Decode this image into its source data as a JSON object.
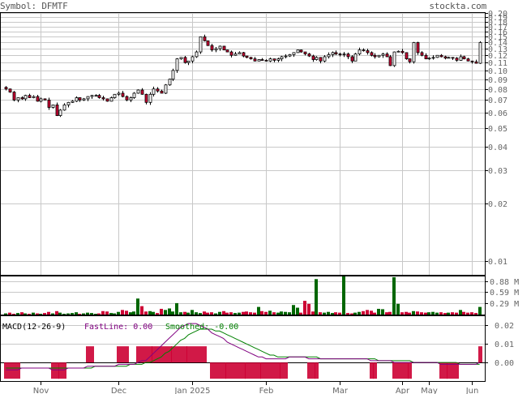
{
  "header": {
    "symbol_label": "Symbol: DFMTF",
    "site": "stockta.com"
  },
  "macd": {
    "title": "MACD(12-26-9)",
    "fast_label": "FastLine: 0.00",
    "smooth_label": "Smoothed: -0.00",
    "fast_color": "#800080",
    "smooth_color": "#008000"
  },
  "colors": {
    "up": "#ffffff",
    "down": "#cc0033",
    "vol_up": "#006600",
    "vol_down": "#cc0033",
    "grid": "#c8c8c8"
  },
  "chart_data": [
    {
      "type": "candlestick",
      "title": "Price (log scale)",
      "y_scale": "log",
      "ylim": [
        0.0085,
        0.2
      ],
      "y_ticks": [
        "0.20",
        "0.19",
        "0.18",
        "0.17",
        "0.16",
        "0.15",
        "0.14",
        "0.13",
        "0.12",
        "0.11",
        "0.10",
        "0.09",
        "0.08",
        "0.07",
        "0.06",
        "0.05",
        "0.04",
        "0.03",
        "0.02",
        "0.01"
      ],
      "x_ticks": [
        "Nov",
        "Dec",
        "Jan 2025",
        "Feb",
        "Mar",
        "Apr",
        "May",
        "Jun"
      ],
      "closes": [
        0.08,
        0.077,
        0.07,
        0.072,
        0.071,
        0.074,
        0.072,
        0.073,
        0.069,
        0.071,
        0.07,
        0.064,
        0.066,
        0.058,
        0.062,
        0.066,
        0.068,
        0.069,
        0.072,
        0.07,
        0.071,
        0.073,
        0.074,
        0.074,
        0.072,
        0.071,
        0.069,
        0.072,
        0.075,
        0.076,
        0.073,
        0.07,
        0.072,
        0.076,
        0.079,
        0.075,
        0.068,
        0.075,
        0.08,
        0.078,
        0.076,
        0.084,
        0.09,
        0.1,
        0.115,
        0.117,
        0.11,
        0.112,
        0.118,
        0.125,
        0.15,
        0.143,
        0.135,
        0.128,
        0.13,
        0.134,
        0.128,
        0.125,
        0.12,
        0.122,
        0.124,
        0.119,
        0.117,
        0.115,
        0.112,
        0.114,
        0.113,
        0.112,
        0.115,
        0.113,
        0.115,
        0.118,
        0.119,
        0.121,
        0.124,
        0.128,
        0.125,
        0.122,
        0.119,
        0.114,
        0.117,
        0.112,
        0.118,
        0.121,
        0.124,
        0.122,
        0.121,
        0.122,
        0.118,
        0.112,
        0.122,
        0.128,
        0.127,
        0.124,
        0.12,
        0.118,
        0.12,
        0.122,
        0.118,
        0.106,
        0.125,
        0.126,
        0.124,
        0.115,
        0.111,
        0.14,
        0.124,
        0.12,
        0.115,
        0.116,
        0.117,
        0.12,
        0.118,
        0.116,
        0.117,
        0.116,
        0.113,
        0.118,
        0.115,
        0.112,
        0.111,
        0.109,
        0.14
      ]
    },
    {
      "type": "bar",
      "title": "Volume",
      "y_ticks": [
        "0.88 M",
        "0.59 M",
        "0.29 M"
      ],
      "ylim": [
        0,
        1.0
      ],
      "values": [
        0.03,
        0.05,
        0.02,
        0.04,
        0.06,
        0.03,
        0.02,
        0.05,
        0.03,
        0.02,
        0.04,
        0.07,
        0.03,
        0.09,
        0.05,
        0.02,
        0.03,
        0.04,
        0.06,
        0.02,
        0.03,
        0.05,
        0.04,
        0.02,
        0.03,
        0.09,
        0.08,
        0.04,
        0.03,
        0.07,
        0.12,
        0.1,
        0.06,
        0.08,
        0.42,
        0.22,
        0.08,
        0.09,
        0.07,
        0.04,
        0.15,
        0.12,
        0.16,
        0.08,
        0.3,
        0.06,
        0.07,
        0.05,
        0.12,
        0.06,
        0.04,
        0.08,
        0.05,
        0.06,
        0.03,
        0.07,
        0.09,
        0.05,
        0.06,
        0.04,
        0.05,
        0.07,
        0.08,
        0.06,
        0.05,
        0.2,
        0.09,
        0.07,
        0.1,
        0.06,
        0.05,
        0.08,
        0.07,
        0.06,
        0.25,
        0.18,
        0.05,
        0.36,
        0.28,
        0.08,
        0.93,
        0.06,
        0.05,
        0.07,
        0.04,
        0.06,
        0.05,
        1.0,
        0.04,
        0.03,
        0.05,
        0.07,
        0.09,
        0.12,
        0.1,
        0.05,
        0.15,
        0.14,
        0.06,
        0.07,
        0.98,
        0.28,
        0.06,
        0.07,
        0.05,
        0.09,
        0.08,
        0.06,
        0.05,
        0.06,
        0.07,
        0.05,
        0.06,
        0.04,
        0.05,
        0.06,
        0.05,
        0.12,
        0.07,
        0.05,
        0.06,
        0.04,
        0.2
      ]
    },
    {
      "type": "line",
      "title": "MACD(12-26-9)",
      "y_ticks": [
        "0.02",
        "0.01",
        "0.00"
      ],
      "ylim": [
        -0.01,
        0.025
      ],
      "series": [
        {
          "name": "FastLine",
          "values": [
            -0.004,
            -0.004,
            -0.004,
            -0.004,
            -0.003,
            -0.003,
            -0.003,
            -0.003,
            -0.003,
            -0.003,
            -0.003,
            -0.003,
            -0.004,
            -0.004,
            -0.004,
            -0.004,
            -0.003,
            -0.003,
            -0.003,
            -0.003,
            -0.003,
            -0.002,
            -0.002,
            -0.002,
            -0.002,
            -0.002,
            -0.002,
            -0.002,
            -0.002,
            -0.001,
            -0.001,
            -0.001,
            -0.001,
            -0.001,
            0.0,
            0.001,
            0.001,
            0.003,
            0.005,
            0.007,
            0.009,
            0.011,
            0.013,
            0.015,
            0.017,
            0.019,
            0.02,
            0.021,
            0.021,
            0.021,
            0.02,
            0.019,
            0.018,
            0.016,
            0.015,
            0.014,
            0.013,
            0.011,
            0.01,
            0.009,
            0.008,
            0.007,
            0.006,
            0.005,
            0.004,
            0.003,
            0.003,
            0.002,
            0.002,
            0.002,
            0.002,
            0.002,
            0.002,
            0.003,
            0.003,
            0.003,
            0.003,
            0.003,
            0.002,
            0.002,
            0.002,
            0.002,
            0.002,
            0.002,
            0.002,
            0.002,
            0.002,
            0.002,
            0.002,
            0.002,
            0.002,
            0.002,
            0.002,
            0.002,
            0.001,
            0.001,
            0.001,
            0.001,
            0.001,
            0.001,
            0.0,
            0.0,
            0.0,
            0.0,
            0.0,
            0.0,
            0.0,
            0.0,
            0.0,
            0.0,
            0.0,
            0.0,
            -0.001,
            -0.001,
            -0.001,
            -0.001,
            -0.001,
            -0.001,
            -0.001,
            -0.001,
            -0.001,
            -0.001,
            0.0
          ]
        },
        {
          "name": "Smoothed",
          "values": [
            -0.003,
            -0.003,
            -0.003,
            -0.003,
            -0.003,
            -0.003,
            -0.003,
            -0.003,
            -0.003,
            -0.003,
            -0.003,
            -0.003,
            -0.003,
            -0.003,
            -0.003,
            -0.003,
            -0.003,
            -0.003,
            -0.003,
            -0.003,
            -0.003,
            -0.003,
            -0.003,
            -0.002,
            -0.002,
            -0.002,
            -0.002,
            -0.002,
            -0.002,
            -0.002,
            -0.002,
            -0.002,
            -0.001,
            -0.001,
            -0.001,
            -0.001,
            0.0,
            0.0,
            0.001,
            0.002,
            0.003,
            0.005,
            0.006,
            0.008,
            0.01,
            0.012,
            0.013,
            0.015,
            0.016,
            0.017,
            0.018,
            0.018,
            0.018,
            0.018,
            0.017,
            0.017,
            0.016,
            0.015,
            0.014,
            0.013,
            0.012,
            0.011,
            0.01,
            0.009,
            0.008,
            0.007,
            0.006,
            0.005,
            0.004,
            0.004,
            0.003,
            0.003,
            0.003,
            0.003,
            0.003,
            0.003,
            0.003,
            0.003,
            0.003,
            0.003,
            0.003,
            0.002,
            0.002,
            0.002,
            0.002,
            0.002,
            0.002,
            0.002,
            0.002,
            0.002,
            0.002,
            0.002,
            0.002,
            0.002,
            0.002,
            0.002,
            0.001,
            0.001,
            0.001,
            0.001,
            0.001,
            0.001,
            0.001,
            0.001,
            0.001,
            0.0,
            0.0,
            0.0,
            0.0,
            0.0,
            0.0,
            0.0,
            0.0,
            0.0,
            0.0,
            0.0,
            0.0,
            -0.001,
            -0.001,
            -0.001,
            -0.001,
            -0.001,
            -0.001
          ]
        }
      ]
    }
  ]
}
